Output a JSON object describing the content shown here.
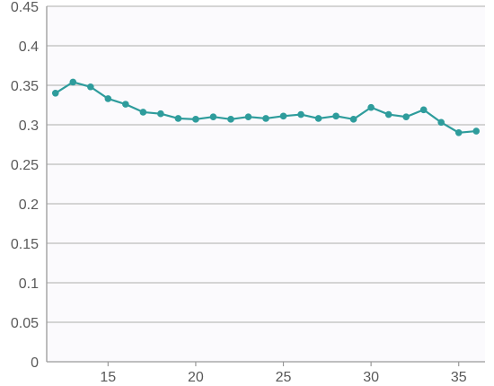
{
  "colors": {
    "series": "#2e9c9c",
    "grid": "#bdbdbd",
    "axis": "#9a9a9a",
    "tick_text": "#595959",
    "plot_background": "#fbfafd"
  },
  "chart_data": {
    "type": "line",
    "title": "",
    "xlabel": "",
    "ylabel": "",
    "xlim": [
      11.5,
      36.5
    ],
    "ylim": [
      0,
      0.45
    ],
    "x_ticks": [
      15,
      20,
      25,
      30,
      35
    ],
    "x_tick_labels": [
      "15",
      "20",
      "25",
      "30",
      "35"
    ],
    "y_ticks": [
      0,
      0.05,
      0.1,
      0.15,
      0.2,
      0.25,
      0.3,
      0.35,
      0.4,
      0.45
    ],
    "y_tick_labels": [
      "0",
      "0.05",
      "0.1",
      "0.15",
      "0.2",
      "0.25",
      "0.3",
      "0.35",
      "0.4",
      "0.45"
    ],
    "grid": "horizontal",
    "legend": "none",
    "series": [
      {
        "markers": true,
        "x": [
          12,
          13,
          14,
          15,
          16,
          17,
          18,
          19,
          20,
          21,
          22,
          23,
          24,
          25,
          26,
          27,
          28,
          29,
          30,
          31,
          32,
          33,
          34,
          35,
          36
        ],
        "y": [
          0.34,
          0.354,
          0.348,
          0.333,
          0.326,
          0.316,
          0.314,
          0.308,
          0.307,
          0.31,
          0.307,
          0.31,
          0.308,
          0.311,
          0.313,
          0.308,
          0.311,
          0.307,
          0.322,
          0.313,
          0.31,
          0.319,
          0.303,
          0.29,
          0.292
        ]
      }
    ]
  }
}
